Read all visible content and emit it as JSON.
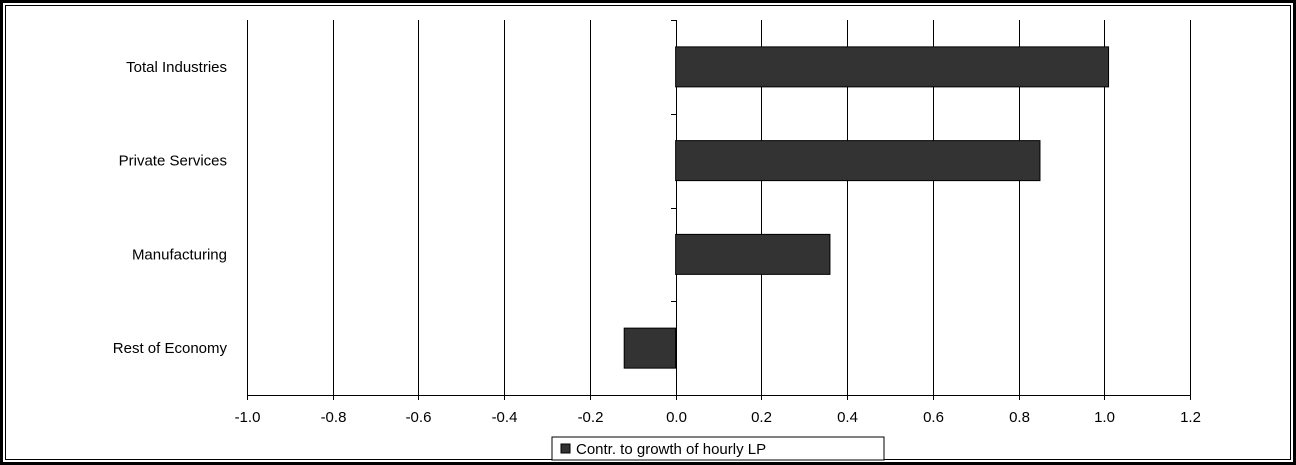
{
  "chart_data": {
    "type": "bar",
    "orientation": "horizontal",
    "title": "",
    "xlabel": "",
    "ylabel": "",
    "categories": [
      "Total Industries",
      "Private Services",
      "Manufacturing",
      "Rest of Economy"
    ],
    "series": [
      {
        "name": "Contr. to growth of hourly LP",
        "values": [
          1.01,
          0.85,
          0.36,
          -0.12
        ],
        "color": "#333333"
      }
    ],
    "xlim": [
      -1.0,
      1.2
    ],
    "xticks": [
      -1.0,
      -0.8,
      -0.6,
      -0.4,
      -0.2,
      0.0,
      0.2,
      0.4,
      0.6,
      0.8,
      1.0,
      1.2
    ],
    "xtick_labels": [
      "-1.0",
      "-0.8",
      "-0.6",
      "-0.4",
      "-0.2",
      "0.0",
      "0.2",
      "0.4",
      "0.6",
      "0.8",
      "1.0",
      "1.2"
    ],
    "grid": "vertical",
    "legend": {
      "position": "bottom",
      "entries": [
        "Contr. to growth of hourly LP"
      ]
    }
  }
}
